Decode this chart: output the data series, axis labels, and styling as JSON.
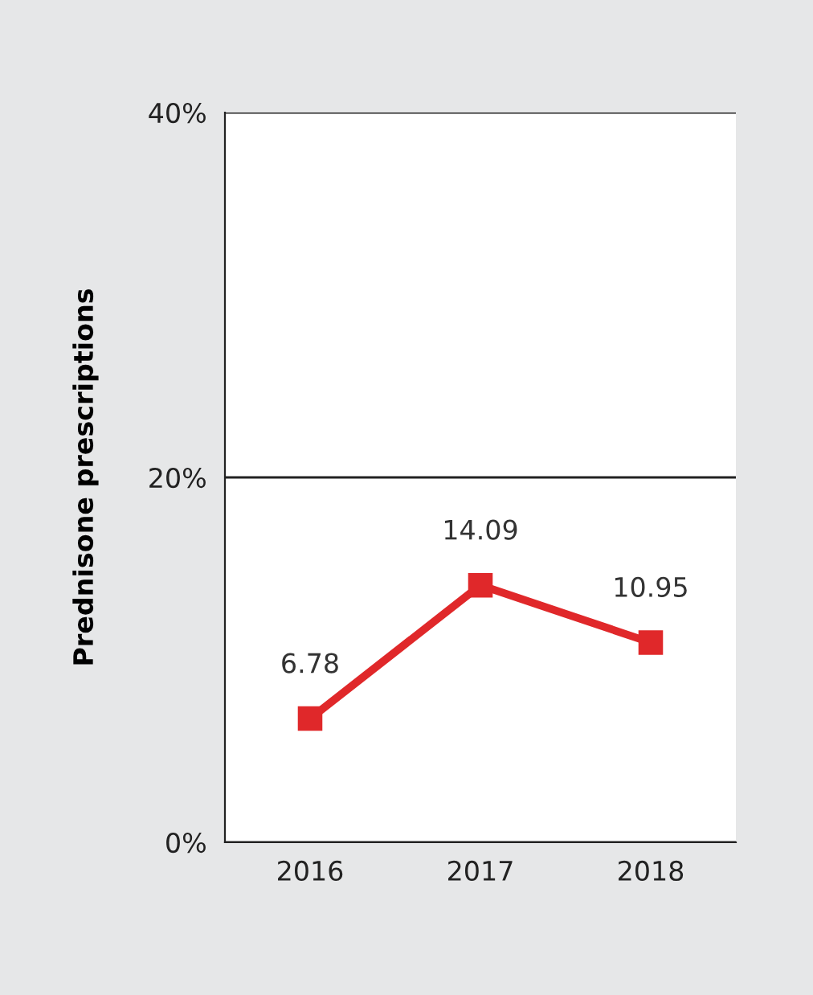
{
  "chart_data": {
    "type": "line",
    "ylabel": "Prednisone prescriptions",
    "categories": [
      "2016",
      "2017",
      "2018"
    ],
    "series": [
      {
        "color": "#e0282a",
        "values": [
          6.78,
          14.09,
          10.95
        ]
      }
    ],
    "ylim": [
      0,
      40
    ],
    "yticks": [
      {
        "value": 0,
        "label": "0%"
      },
      {
        "value": 20,
        "label": "20%"
      },
      {
        "value": 40,
        "label": "40%"
      }
    ],
    "grid": "y",
    "marker": "square",
    "line_style": "solid",
    "data_labels": true,
    "legend": false
  }
}
